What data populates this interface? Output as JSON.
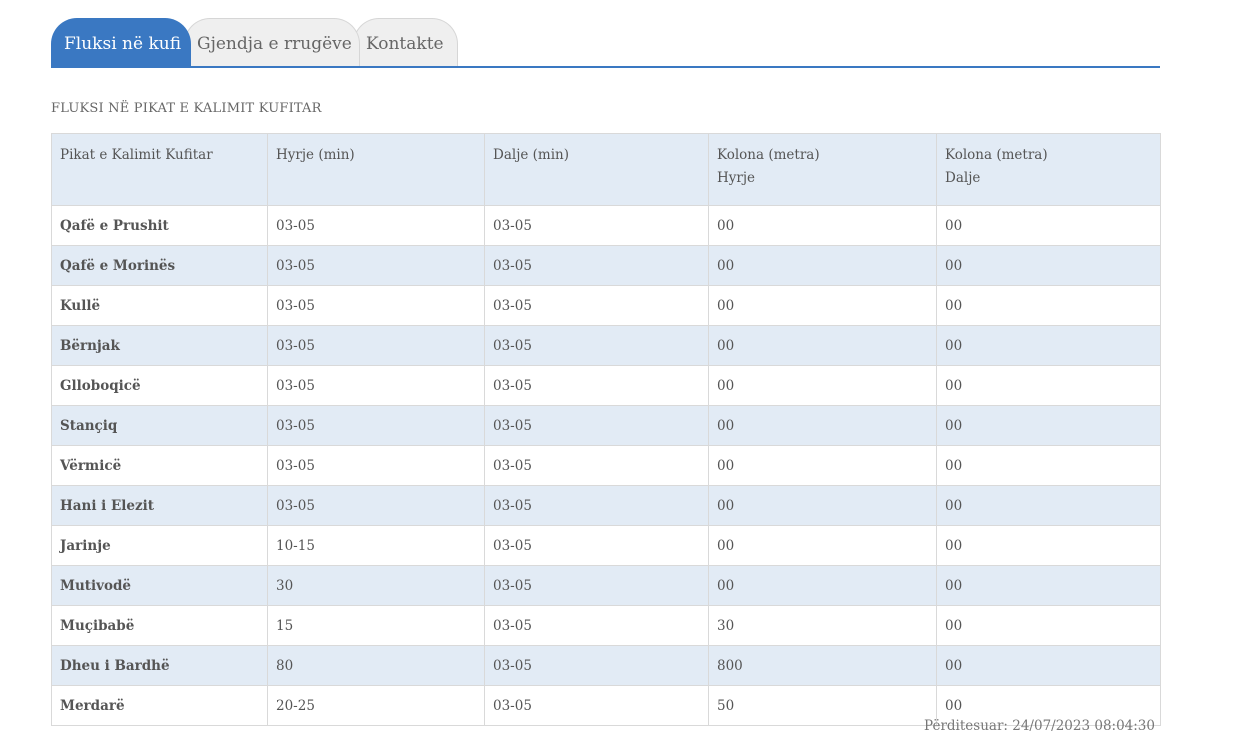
{
  "tabs": [
    {
      "label": "Fluksi në kufi",
      "active": true
    },
    {
      "label": "Gjendja e rrugëve",
      "active": false
    },
    {
      "label": "Kontakte",
      "active": false
    }
  ],
  "colors": {
    "accent": "#3a78c2",
    "row_alt": "#e2ebf5",
    "tab_inactive": "#efefef"
  },
  "section_title": "FLUKSI NË PIKAT E KALIMIT KUFITAR",
  "table": {
    "headers": {
      "point": "Pikat e Kalimit Kufitar",
      "entry": "Hyrje (min)",
      "exit": "Dalje (min)",
      "queue_entry_1": "Kolona (metra)",
      "queue_entry_2": "Hyrje",
      "queue_exit_1": "Kolona (metra)",
      "queue_exit_2": "Dalje"
    },
    "rows": [
      {
        "name": "Qafë e Prushit",
        "entry": "03-05",
        "exit": "03-05",
        "queue_in": "00",
        "queue_out": "00"
      },
      {
        "name": "Qafë e Morinës",
        "entry": "03-05",
        "exit": "03-05",
        "queue_in": "00",
        "queue_out": "00"
      },
      {
        "name": "Kullë",
        "entry": "03-05",
        "exit": "03-05",
        "queue_in": "00",
        "queue_out": "00"
      },
      {
        "name": "Bërnjak",
        "entry": "03-05",
        "exit": "03-05",
        "queue_in": "00",
        "queue_out": "00"
      },
      {
        "name": "Glloboqicë",
        "entry": "03-05",
        "exit": "03-05",
        "queue_in": "00",
        "queue_out": "00"
      },
      {
        "name": "Stançiq",
        "entry": "03-05",
        "exit": "03-05",
        "queue_in": "00",
        "queue_out": "00"
      },
      {
        "name": "Vërmicë",
        "entry": "03-05",
        "exit": "03-05",
        "queue_in": "00",
        "queue_out": "00"
      },
      {
        "name": "Hani i Elezit",
        "entry": "03-05",
        "exit": "03-05",
        "queue_in": "00",
        "queue_out": "00"
      },
      {
        "name": "Jarinje",
        "entry": "10-15",
        "exit": "03-05",
        "queue_in": "00",
        "queue_out": "00"
      },
      {
        "name": "Mutivodë",
        "entry": "30",
        "exit": "03-05",
        "queue_in": "00",
        "queue_out": "00"
      },
      {
        "name": "Muçibabë",
        "entry": "15",
        "exit": "03-05",
        "queue_in": "30",
        "queue_out": "00"
      },
      {
        "name": "Dheu i Bardhë",
        "entry": "80",
        "exit": "03-05",
        "queue_in": "800",
        "queue_out": "00"
      },
      {
        "name": "Merdarë",
        "entry": "20-25",
        "exit": "03-05",
        "queue_in": "50",
        "queue_out": "00"
      }
    ]
  },
  "updated": "Përditesuar: 24/07/2023 08:04:30"
}
